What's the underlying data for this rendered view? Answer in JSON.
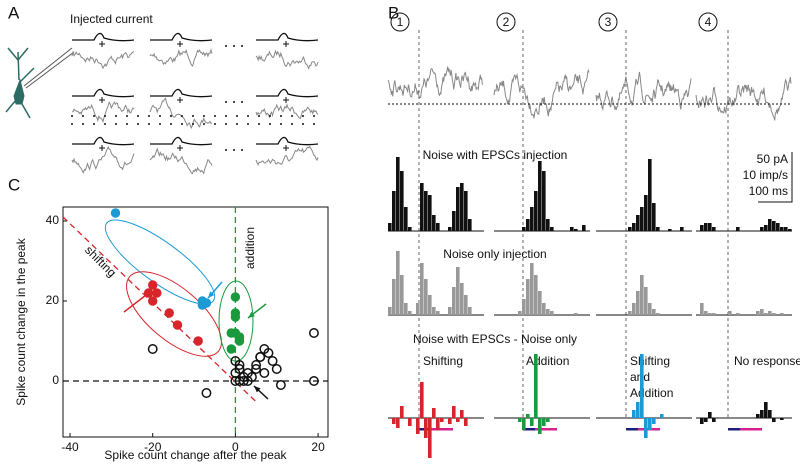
{
  "panel_labels": [
    "A",
    "B",
    "C"
  ],
  "panel_a": {
    "title": "Injected current"
  },
  "panel_b": {
    "conditions": [
      "1",
      "2",
      "3",
      "4"
    ],
    "rows": [
      "Noise with EPSCs injection",
      "Noise only injection",
      "Noise with EPSCs - Noise only"
    ],
    "scale_bar": [
      "50 pA",
      "10 imp/s",
      "100 ms"
    ],
    "effects": [
      {
        "lines": [
          "Shifting"
        ],
        "color": "#d7262b"
      },
      {
        "lines": [
          "Addition"
        ],
        "color": "#1a9a3c"
      },
      {
        "lines": [
          "Shifting",
          "and",
          "Addition"
        ],
        "color": "#1b9ad6"
      },
      {
        "lines": [
          "No response"
        ],
        "color": "#111111"
      }
    ],
    "row_colors": [
      "#111111",
      "#999999"
    ],
    "histograms": [
      [
        [
          4,
          20,
          37,
          30,
          12,
          2,
          0,
          0,
          24,
          20,
          18,
          8,
          4,
          0,
          0,
          2,
          10,
          22,
          24,
          20,
          6,
          0,
          0,
          0
        ],
        [
          0,
          0,
          0,
          0,
          0,
          0,
          0,
          2,
          6,
          12,
          20,
          35,
          30,
          6,
          2,
          0,
          0,
          0,
          0,
          2,
          1,
          0,
          3,
          0
        ],
        [
          0,
          0,
          0,
          0,
          0,
          0,
          0,
          0,
          2,
          4,
          8,
          12,
          18,
          36,
          14,
          2,
          0,
          0,
          1,
          0,
          0,
          2,
          0,
          0
        ],
        [
          0,
          3,
          4,
          4,
          2,
          0,
          0,
          0,
          0,
          0,
          2,
          0,
          0,
          0,
          0,
          0,
          2,
          3,
          6,
          5,
          4,
          2,
          2,
          1
        ]
      ],
      [
        [
          4,
          18,
          32,
          20,
          6,
          2,
          0,
          6,
          26,
          18,
          10,
          4,
          2,
          0,
          0,
          4,
          14,
          24,
          16,
          10,
          4,
          0,
          0,
          0
        ],
        [
          0,
          0,
          0,
          0,
          0,
          0,
          2,
          8,
          18,
          26,
          20,
          12,
          6,
          3,
          2,
          0,
          0,
          0,
          0,
          0,
          1,
          0,
          0,
          0
        ],
        [
          0,
          0,
          0,
          0,
          0,
          0,
          0,
          0,
          2,
          6,
          12,
          20,
          14,
          6,
          3,
          1,
          0,
          0,
          0,
          0,
          0,
          0,
          0,
          0
        ],
        [
          0,
          6,
          2,
          1,
          1,
          0,
          0,
          0,
          2,
          0,
          1,
          0,
          0,
          0,
          0,
          2,
          3,
          1,
          2,
          1,
          0,
          1,
          0,
          0
        ]
      ],
      [
        [
          0,
          -3,
          -5,
          6,
          0,
          -4,
          0,
          -8,
          18,
          -10,
          -20,
          5,
          -6,
          -2,
          0,
          -3,
          6,
          -2,
          4,
          -4,
          0,
          0,
          0,
          0
        ],
        [
          0,
          0,
          0,
          0,
          0,
          0,
          -2,
          -6,
          2,
          -4,
          32,
          -8,
          -4,
          -2,
          0,
          0,
          0,
          0,
          0,
          0,
          0,
          0,
          0,
          0
        ],
        [
          0,
          0,
          0,
          0,
          0,
          0,
          0,
          0,
          0,
          4,
          8,
          32,
          -10,
          -6,
          -3,
          0,
          2,
          0,
          0,
          0,
          0,
          0,
          0,
          0
        ],
        [
          0,
          -3,
          -2,
          3,
          -2,
          0,
          0,
          0,
          0,
          0,
          0,
          0,
          0,
          0,
          0,
          2,
          4,
          8,
          4,
          -2,
          0,
          -1,
          0,
          0
        ]
      ]
    ]
  },
  "chart_data": {
    "type": "scatter",
    "xlabel": "Spike count change after the peak",
    "ylabel": "Spike count change in the peak",
    "xlim": [
      -41.7,
      22.4
    ],
    "ylim": [
      -14,
      43.5
    ],
    "xticks": [
      -40,
      -20,
      0,
      20
    ],
    "yticks": [
      0,
      20,
      40
    ],
    "annotations": [
      {
        "text": "shifting",
        "color": "#d7262b"
      },
      {
        "text": "addition",
        "color": "#1a9a3c"
      }
    ],
    "series": [
      {
        "color": "#1b9ad6",
        "filled": true,
        "x": [
          -29,
          -8,
          -7,
          -8
        ],
        "y": [
          42,
          20,
          19.5,
          19
        ]
      },
      {
        "color": "#d7262b",
        "filled": true,
        "x": [
          -20,
          -21,
          -19,
          -20,
          -16,
          -14,
          -9
        ],
        "y": [
          24,
          22,
          22,
          20,
          17,
          14,
          10
        ]
      },
      {
        "color": "#1a9a3c",
        "filled": true,
        "x": [
          0,
          0,
          0,
          0,
          -1,
          1,
          -1,
          1
        ],
        "y": [
          21,
          17,
          16,
          12,
          12,
          11,
          8,
          10
        ]
      },
      {
        "color": "#111111",
        "filled": false,
        "x": [
          -20,
          19,
          19,
          -7,
          11,
          0,
          1,
          2,
          0,
          1,
          3,
          5,
          6,
          7,
          8,
          9,
          4,
          5,
          6,
          2,
          3,
          0,
          1,
          7,
          10
        ],
        "y": [
          8,
          12,
          0,
          -3,
          -1,
          5,
          3,
          1,
          0,
          0,
          2,
          4,
          6,
          8,
          7,
          5,
          1,
          3,
          6,
          0,
          0,
          2,
          4,
          2,
          3
        ]
      }
    ]
  }
}
